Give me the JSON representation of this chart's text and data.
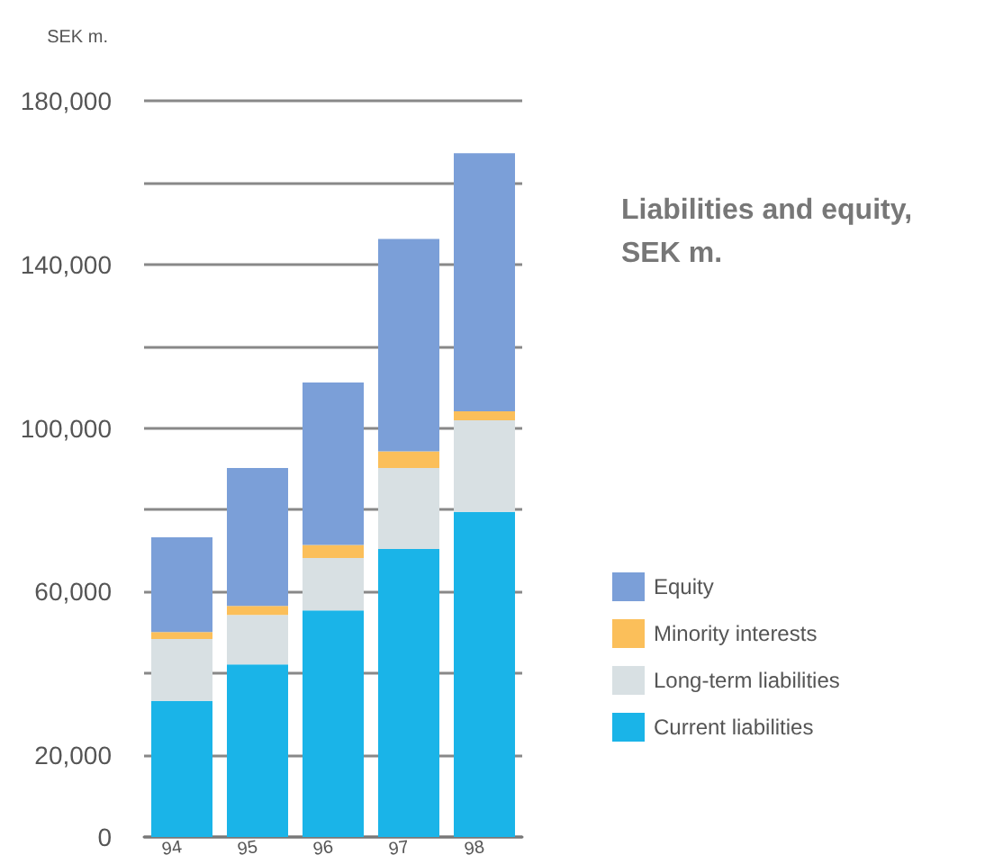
{
  "chart_data": {
    "type": "bar",
    "title": "Liabilities and equity,\nSEK m.",
    "ylabel": "SEK m.",
    "categories": [
      "94",
      "95",
      "96",
      "97",
      "98"
    ],
    "stacked": true,
    "series": [
      {
        "name": "Current liabilities",
        "color": "#1ab4e8",
        "values": [
          33300,
          42200,
          55400,
          70400,
          79500
        ]
      },
      {
        "name": "Long-term liabilities",
        "color": "#d8e0e3",
        "values": [
          15100,
          12100,
          12800,
          19800,
          22400
        ]
      },
      {
        "name": "Minority interests",
        "color": "#fbbf5a",
        "values": [
          1700,
          2200,
          3200,
          4100,
          2200
        ]
      },
      {
        "name": "Equity",
        "color": "#7b9fd8",
        "values": [
          23200,
          33700,
          39700,
          51900,
          63100
        ]
      }
    ],
    "ylim": [
      0,
      180000
    ],
    "yticks": [
      {
        "value": 0,
        "label": "0"
      },
      {
        "value": 20000,
        "label": "20,000"
      },
      {
        "value": 40000,
        "label": null
      },
      {
        "value": 60000,
        "label": "60,000"
      },
      {
        "value": 80000,
        "label": null
      },
      {
        "value": 100000,
        "label": "100,000"
      },
      {
        "value": 120000,
        "label": null
      },
      {
        "value": 140000,
        "label": "140,000"
      },
      {
        "value": 160000,
        "label": null
      },
      {
        "value": 180000,
        "label": "180,000"
      }
    ],
    "grid": "y",
    "legend": "right"
  }
}
